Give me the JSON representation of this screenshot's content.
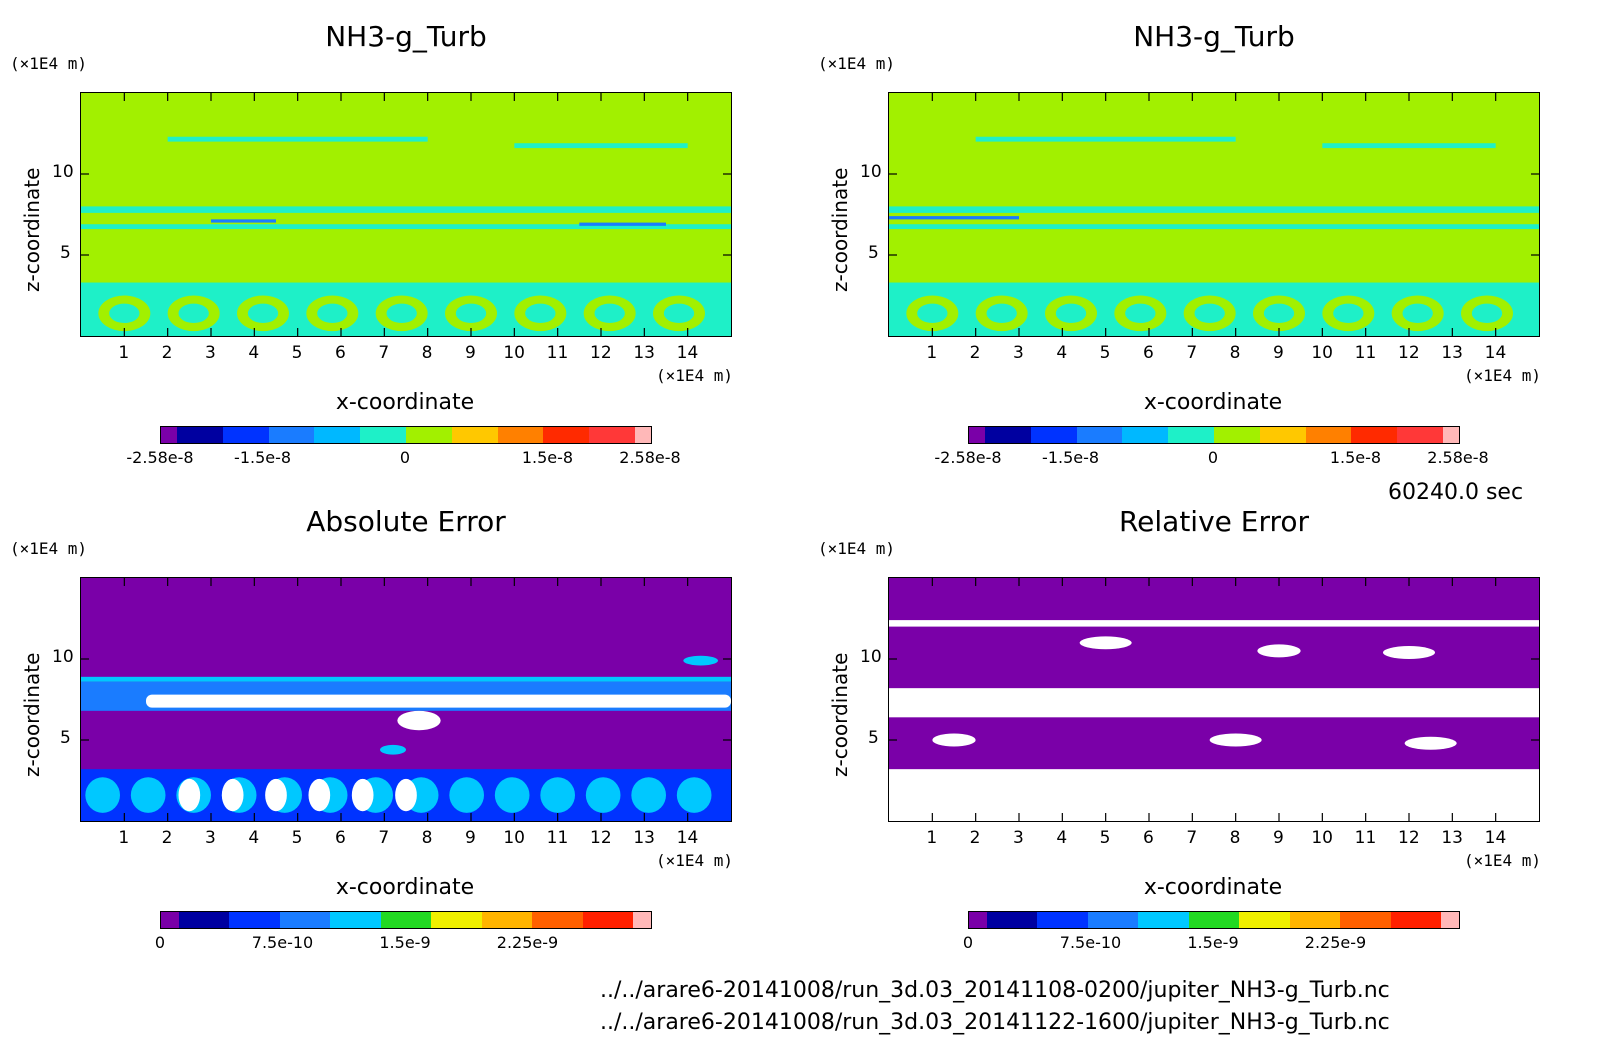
{
  "chart_data": [
    {
      "type": "heatmap",
      "title": "NH3-g_Turb",
      "xlabel": "x-coordinate",
      "ylabel": "z-coordinate",
      "x_unit": "(×1E4 m)",
      "y_unit": "(×1E4 m)",
      "xlim": [
        0,
        15
      ],
      "ylim": [
        0,
        15
      ],
      "x_ticks": [
        1,
        2,
        3,
        4,
        5,
        6,
        7,
        8,
        9,
        10,
        11,
        12,
        13,
        14
      ],
      "y_ticks": [
        5,
        10
      ],
      "colorbar": {
        "range": [
          -2.58e-08,
          2.58e-08
        ],
        "labels": [
          "-2.58e-8",
          "-1.5e-8",
          "0",
          "1.5e-8",
          "2.58e-8"
        ],
        "label_positions": [
          -2.58e-08,
          -1.5e-08,
          0,
          1.5e-08,
          2.58e-08
        ],
        "colors": [
          "#7a00a8",
          "#0000a0",
          "#0033ff",
          "#1a7cff",
          "#00b8ff",
          "#1ef0c8",
          "#a2f000",
          "#ffc800",
          "#ff8000",
          "#ff2a00",
          "#ff3838",
          "#ffb8b8"
        ]
      }
    },
    {
      "type": "heatmap",
      "title": "NH3-g_Turb",
      "xlabel": "x-coordinate",
      "ylabel": "z-coordinate",
      "x_unit": "(×1E4 m)",
      "y_unit": "(×1E4 m)",
      "xlim": [
        0,
        15
      ],
      "ylim": [
        0,
        15
      ],
      "x_ticks": [
        1,
        2,
        3,
        4,
        5,
        6,
        7,
        8,
        9,
        10,
        11,
        12,
        13,
        14
      ],
      "y_ticks": [
        5,
        10
      ],
      "colorbar": {
        "range": [
          -2.58e-08,
          2.58e-08
        ],
        "labels": [
          "-2.58e-8",
          "-1.5e-8",
          "0",
          "1.5e-8",
          "2.58e-8"
        ],
        "label_positions": [
          -2.58e-08,
          -1.5e-08,
          0,
          1.5e-08,
          2.58e-08
        ],
        "colors": [
          "#7a00a8",
          "#0000a0",
          "#0033ff",
          "#1a7cff",
          "#00b8ff",
          "#1ef0c8",
          "#a2f000",
          "#ffc800",
          "#ff8000",
          "#ff2a00",
          "#ff3838",
          "#ffb8b8"
        ]
      }
    },
    {
      "type": "heatmap",
      "title": "Absolute Error",
      "xlabel": "x-coordinate",
      "ylabel": "z-coordinate",
      "x_unit": "(×1E4 m)",
      "y_unit": "(×1E4 m)",
      "xlim": [
        0,
        15
      ],
      "ylim": [
        0,
        15
      ],
      "x_ticks": [
        1,
        2,
        3,
        4,
        5,
        6,
        7,
        8,
        9,
        10,
        11,
        12,
        13,
        14
      ],
      "y_ticks": [
        5,
        10
      ],
      "colorbar": {
        "range": [
          0,
          3e-09
        ],
        "labels": [
          "0",
          "7.5e-10",
          "1.5e-9",
          "2.25e-9"
        ],
        "label_positions": [
          0,
          7.5e-10,
          1.5e-09,
          2.25e-09
        ],
        "colors": [
          "#7a00a8",
          "#0000a0",
          "#0033ff",
          "#1a7cff",
          "#00c8ff",
          "#22d922",
          "#f0f000",
          "#ffb400",
          "#ff6000",
          "#ff2000",
          "#ffb8b8"
        ]
      }
    },
    {
      "type": "heatmap",
      "title": "Relative Error",
      "xlabel": "x-coordinate",
      "ylabel": "z-coordinate",
      "x_unit": "(×1E4 m)",
      "y_unit": "(×1E4 m)",
      "xlim": [
        0,
        15
      ],
      "ylim": [
        0,
        15
      ],
      "x_ticks": [
        1,
        2,
        3,
        4,
        5,
        6,
        7,
        8,
        9,
        10,
        11,
        12,
        13,
        14
      ],
      "y_ticks": [
        5,
        10
      ],
      "colorbar": {
        "range": [
          0,
          3e-09
        ],
        "labels": [
          "0",
          "7.5e-10",
          "1.5e-9",
          "2.25e-9"
        ],
        "label_positions": [
          0,
          7.5e-10,
          1.5e-09,
          2.25e-09
        ],
        "colors": [
          "#7a00a8",
          "#0000a0",
          "#0033ff",
          "#1a7cff",
          "#00c8ff",
          "#22d922",
          "#f0f000",
          "#ffb400",
          "#ff6000",
          "#ff2000",
          "#ffb8b8"
        ]
      }
    }
  ],
  "time_label": "60240.0 sec",
  "files": [
    "../../arare6-20141008/run_3d.03_20141108-0200/jupiter_NH3-g_Turb.nc",
    "../../arare6-20141008/run_3d.03_20141122-1600/jupiter_NH3-g_Turb.nc"
  ]
}
